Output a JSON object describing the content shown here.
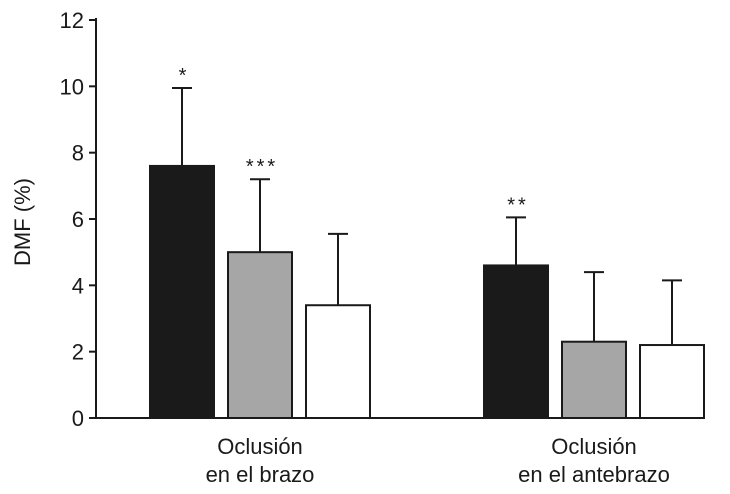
{
  "chart_data": {
    "type": "bar",
    "ylabel": "DMF (%)",
    "ylim": [
      0,
      12
    ],
    "yticks": [
      "0",
      "2",
      "4",
      "6",
      "8",
      "10",
      "12"
    ],
    "categories": [
      {
        "line1": "Oclusión",
        "line2": "en el brazo"
      },
      {
        "line1": "Oclusión",
        "line2": "en el antebrazo"
      }
    ],
    "series": [
      {
        "color": "#1a1a1a",
        "values": [
          7.6,
          4.6
        ],
        "errors": [
          2.35,
          1.45
        ],
        "significance": [
          "*",
          "**"
        ]
      },
      {
        "color": "#a6a6a6",
        "values": [
          5.0,
          2.3
        ],
        "errors": [
          2.2,
          2.1
        ],
        "significance": [
          "***",
          ""
        ]
      },
      {
        "color": "#ffffff",
        "values": [
          3.4,
          2.2
        ],
        "errors": [
          2.15,
          1.95
        ],
        "significance": [
          "",
          ""
        ]
      }
    ],
    "grid": false,
    "legend": "none"
  }
}
